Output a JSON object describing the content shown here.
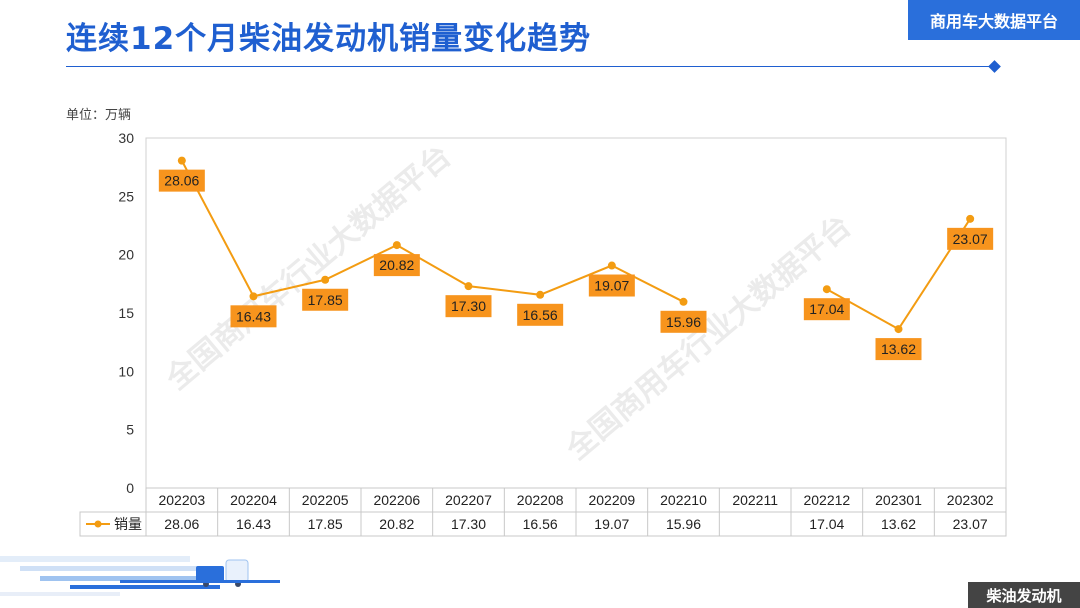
{
  "header": {
    "title": "连续12个月柴油发动机销量变化趋势",
    "brand": "商用车大数据平台"
  },
  "unit_label": "单位：万辆",
  "footer_tag": "柴油发动机",
  "watermark": "全国商用车行业大数据平台",
  "colors": {
    "title": "#1f5fd0",
    "series": "#f39c12",
    "label_bg": "#f7941d"
  },
  "chart_data": {
    "type": "line",
    "categories": [
      "202203",
      "202204",
      "202205",
      "202206",
      "202207",
      "202208",
      "202209",
      "202210",
      "202211",
      "202212",
      "202301",
      "202302"
    ],
    "series": [
      {
        "name": "销量",
        "values": [
          28.06,
          16.43,
          17.85,
          20.82,
          17.3,
          16.56,
          19.07,
          15.96,
          null,
          17.04,
          13.62,
          23.07
        ],
        "labels": [
          "28.06",
          "16.43",
          "17.85",
          "20.82",
          "17.30",
          "16.56",
          "19.07",
          "15.96",
          "",
          "17.04",
          "13.62",
          "23.07"
        ]
      }
    ],
    "ylim": [
      0,
      30
    ],
    "yticks": [
      0,
      5,
      10,
      15,
      20,
      25,
      30
    ],
    "grid": false,
    "data_table": true
  }
}
